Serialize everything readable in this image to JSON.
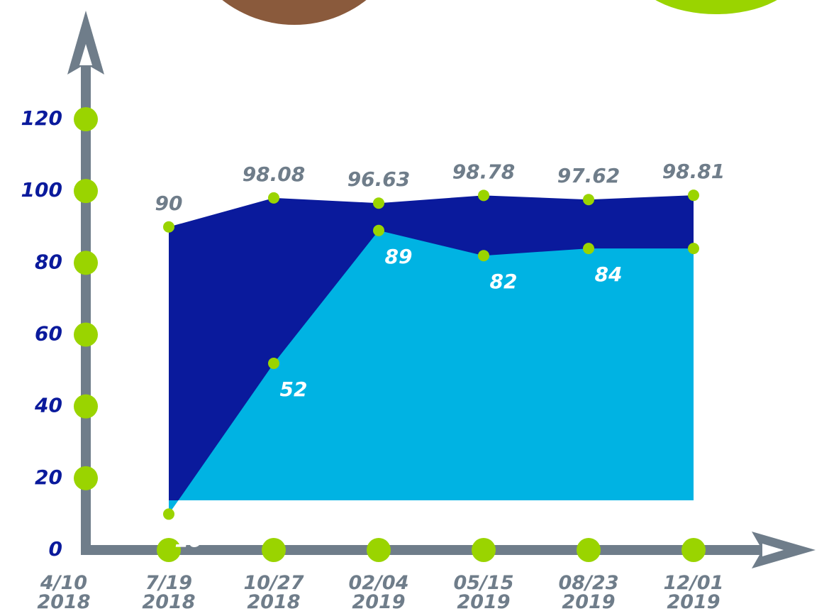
{
  "chart_data": {
    "type": "area",
    "categories": [
      "4/10 2018",
      "7/19 2018",
      "10/27 2018",
      "02/04 2019",
      "05/15 2019",
      "08/23 2019",
      "12/01 2019"
    ],
    "series": [
      {
        "color": "#0a1a9c",
        "label_color": "#6f7d8a",
        "values": [
          null,
          90,
          98.08,
          96.63,
          98.78,
          97.62,
          98.81
        ]
      },
      {
        "color": "#00b3e3",
        "label_color": "#ffffff",
        "values": [
          null,
          10,
          52,
          89,
          82,
          84,
          84
        ]
      }
    ],
    "ylim": [
      0,
      120
    ],
    "yticks": [
      0,
      20,
      40,
      60,
      80,
      100,
      120
    ],
    "tick_color": "#0a1a9c",
    "dot_color": "#9ad400"
  }
}
